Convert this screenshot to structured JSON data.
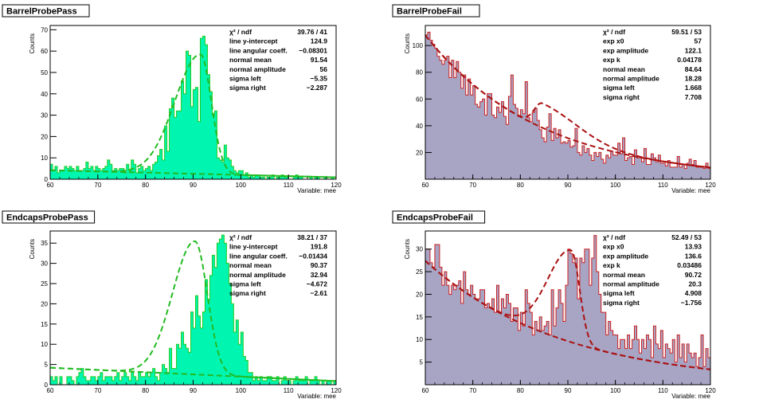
{
  "chart_data": [
    {
      "type": "bar",
      "title": "BarrelProbePass",
      "ylabel": "Counts",
      "xlabel": "Variable: mee",
      "xlim": [
        60,
        120
      ],
      "ylim": [
        0,
        72
      ],
      "xticks": [
        60,
        70,
        80,
        90,
        100,
        110,
        120
      ],
      "yticks": [
        0,
        10,
        20,
        30,
        40,
        50,
        60,
        70
      ],
      "fill_color": "#00f5b0",
      "line_color": "#22cc22",
      "fit_color": "#22bb22",
      "bin_width": 1,
      "values": [
        7,
        4,
        6,
        3,
        4,
        4,
        6,
        5,
        6,
        5,
        4,
        6,
        4,
        4,
        5,
        8,
        5,
        6,
        4,
        6,
        5,
        4,
        5,
        6,
        9,
        7,
        4,
        5,
        4,
        5,
        5,
        3,
        7,
        4,
        9,
        7,
        3,
        5,
        6,
        4,
        5,
        6,
        4,
        7,
        8,
        11,
        14,
        9,
        25,
        13,
        33,
        38,
        29,
        32,
        32,
        46,
        40,
        60,
        58,
        34,
        42,
        43,
        27,
        66,
        67,
        63,
        49,
        41,
        30,
        32,
        10,
        9,
        8,
        16,
        10,
        9,
        6,
        4,
        3,
        4,
        4,
        2,
        3,
        1,
        2,
        1,
        2,
        2,
        1,
        1,
        0,
        1,
        1,
        2,
        0,
        1,
        1,
        2,
        1,
        1,
        0,
        0,
        1,
        2,
        1,
        1,
        0,
        0,
        0,
        1,
        0,
        1,
        1,
        0,
        0,
        1,
        0,
        0,
        1,
        0
      ],
      "stats": [
        {
          "label": "χ² / ndf",
          "value": "39.76 / 41"
        },
        {
          "label": "line y-intercept",
          "value": "124.9"
        },
        {
          "label": "line angular coeff.",
          "value": "−0.08301"
        },
        {
          "label": "normal mean",
          "value": "91.54"
        },
        {
          "label": "normal amplitude",
          "value": "56"
        },
        {
          "label": "sigma left",
          "value": "−5.35"
        },
        {
          "label": "sigma right",
          "value": "−2.287"
        }
      ],
      "fit": {
        "model": "line+asymgauss",
        "intercept": 124.9,
        "slope": -0.08301,
        "mean": 91.54,
        "amplitude": 56,
        "sigma_left": 5.35,
        "sigma_right": 2.287
      }
    },
    {
      "type": "bar",
      "title": "BarrelProbeFail",
      "ylabel": "Counts",
      "xlabel": "Variable: mee",
      "xlim": [
        60,
        120
      ],
      "ylim": [
        0,
        115
      ],
      "xticks": [
        60,
        70,
        80,
        90,
        100,
        110,
        120
      ],
      "yticks": [
        20,
        40,
        60,
        80,
        100
      ],
      "fill_color": "#a8a4c4",
      "line_color": "#cc2222",
      "fit_color": "#aa1111",
      "bin_width": 1,
      "values": [
        108,
        110,
        104,
        101,
        98,
        92,
        89,
        86,
        89,
        92,
        76,
        89,
        76,
        88,
        80,
        68,
        78,
        63,
        75,
        63,
        70,
        56,
        54,
        58,
        60,
        48,
        64,
        64,
        48,
        46,
        54,
        50,
        58,
        47,
        41,
        62,
        78,
        56,
        53,
        47,
        52,
        49,
        73,
        46,
        43,
        50,
        53,
        44,
        37,
        31,
        28,
        39,
        49,
        29,
        38,
        31,
        37,
        27,
        28,
        27,
        29,
        24,
        25,
        38,
        20,
        18,
        25,
        20,
        23,
        18,
        14,
        20,
        17,
        20,
        15,
        12,
        18,
        16,
        21,
        18,
        18,
        27,
        19,
        31,
        14,
        16,
        17,
        11,
        22,
        16,
        16,
        13,
        23,
        11,
        11,
        19,
        16,
        13,
        18,
        12,
        12,
        10,
        14,
        9,
        9,
        9,
        17,
        9,
        11,
        8,
        12,
        15,
        11,
        14,
        9,
        9,
        9,
        8,
        12,
        8
      ],
      "stats": [
        {
          "label": "χ² / ndf",
          "value": "59.51 / 53"
        },
        {
          "label": "exp x0",
          "value": "57"
        },
        {
          "label": "exp amplitude",
          "value": "122.1"
        },
        {
          "label": "exp k",
          "value": "0.04178"
        },
        {
          "label": "normal mean",
          "value": "84.64"
        },
        {
          "label": "normal amplitude",
          "value": "18.28"
        },
        {
          "label": "sigma left",
          "value": "1.668"
        },
        {
          "label": "sigma right",
          "value": "7.708"
        }
      ],
      "fit": {
        "model": "exp+asymgauss",
        "x0": 57,
        "exp_amplitude": 122.1,
        "k": 0.04178,
        "mean": 84.64,
        "amplitude": 18.28,
        "sigma_left": 1.668,
        "sigma_right": 7.708
      }
    },
    {
      "type": "bar",
      "title": "EndcapsProbePass",
      "ylabel": "Counts",
      "xlabel": "Variable: mee",
      "xlim": [
        60,
        120
      ],
      "ylim": [
        0,
        38
      ],
      "xticks": [
        60,
        70,
        80,
        90,
        100,
        110,
        120
      ],
      "yticks": [
        0,
        5,
        10,
        15,
        20,
        25,
        30,
        35
      ],
      "fill_color": "#00f5b0",
      "line_color": "#22cc22",
      "fit_color": "#22bb22",
      "bin_width": 1,
      "values": [
        2,
        1,
        2,
        0,
        2,
        0,
        0,
        2,
        2,
        1,
        0,
        2,
        3,
        4,
        2,
        1,
        1,
        2,
        2,
        1,
        2,
        3,
        1,
        2,
        2,
        2,
        1,
        2,
        3,
        1,
        2,
        3,
        2,
        1,
        3,
        2,
        1,
        3,
        2,
        2,
        3,
        2,
        3,
        4,
        2,
        1,
        3,
        5,
        4,
        3,
        9,
        4,
        4,
        10,
        9,
        13,
        10,
        9,
        8,
        18,
        14,
        22,
        17,
        14,
        18,
        26,
        21,
        27,
        32,
        29,
        35,
        36,
        37,
        35,
        30,
        25,
        20,
        13,
        16,
        10,
        13,
        7,
        6,
        3,
        3,
        1,
        2,
        1,
        2,
        1,
        1,
        2,
        2,
        1,
        1,
        2,
        0,
        1,
        2,
        1,
        1,
        0,
        1,
        2,
        1,
        1,
        1,
        2,
        0,
        1,
        1,
        2,
        1,
        0,
        1,
        0,
        1,
        1,
        0,
        1
      ],
      "stats": [
        {
          "label": "χ² / ndf",
          "value": "38.21 / 37"
        },
        {
          "label": "line y-intercept",
          "value": "191.8"
        },
        {
          "label": "line angular coeff.",
          "value": "−0.01434"
        },
        {
          "label": "normal mean",
          "value": "90.37"
        },
        {
          "label": "normal amplitude",
          "value": "32.94"
        },
        {
          "label": "sigma left",
          "value": "−4.672"
        },
        {
          "label": "sigma right",
          "value": "−2.61"
        }
      ],
      "fit": {
        "model": "line+asymgauss",
        "intercept": 191.8,
        "slope": -0.01434,
        "mean": 90.37,
        "amplitude": 32.94,
        "sigma_left": 4.672,
        "sigma_right": 2.61
      }
    },
    {
      "type": "bar",
      "title": "EndcapsProbeFail",
      "ylabel": "Counts",
      "xlabel": "Variable: mee",
      "xlim": [
        60,
        120
      ],
      "ylim": [
        0,
        34
      ],
      "xticks": [
        60,
        70,
        80,
        90,
        100,
        110,
        120
      ],
      "yticks": [
        5,
        10,
        15,
        20,
        25,
        30
      ],
      "fill_color": "#a8a4c4",
      "line_color": "#cc2222",
      "fit_color": "#aa1111",
      "bin_width": 1,
      "values": [
        30,
        30,
        27,
        26,
        31,
        31,
        26,
        22,
        25,
        22,
        20,
        22,
        21,
        22,
        23,
        18,
        25,
        21,
        20,
        22,
        20,
        19,
        19,
        21,
        21,
        17,
        18,
        17,
        19,
        16,
        22,
        16,
        19,
        17,
        20,
        18,
        14,
        17,
        17,
        12,
        16,
        13,
        21,
        18,
        16,
        11,
        14,
        12,
        15,
        12,
        13,
        14,
        11,
        21,
        13,
        17,
        21,
        18,
        14,
        22,
        30,
        29,
        27,
        28,
        19,
        28,
        27,
        30,
        30,
        22,
        28,
        33,
        25,
        20,
        16,
        16,
        11,
        14,
        12,
        11,
        11,
        8,
        10,
        10,
        8,
        11,
        8,
        10,
        13,
        10,
        7,
        10,
        8,
        11,
        10,
        6,
        13,
        9,
        8,
        12,
        6,
        9,
        8,
        7,
        10,
        5,
        11,
        6,
        9,
        5,
        9,
        7,
        6,
        7,
        4,
        6,
        11,
        4,
        8,
        6
      ],
      "stats": [
        {
          "label": "χ² / ndf",
          "value": "52.49 / 53"
        },
        {
          "label": "exp x0",
          "value": "13.93"
        },
        {
          "label": "exp amplitude",
          "value": "136.6"
        },
        {
          "label": "exp k",
          "value": "0.03486"
        },
        {
          "label": "normal mean",
          "value": "90.72"
        },
        {
          "label": "normal amplitude",
          "value": "20.3"
        },
        {
          "label": "sigma left",
          "value": "4.908"
        },
        {
          "label": "sigma right",
          "value": "−1.756"
        }
      ],
      "fit": {
        "model": "exp+asymgauss",
        "x0": 13.93,
        "exp_amplitude": 136.6,
        "k": 0.03486,
        "mean": 90.72,
        "amplitude": 20.3,
        "sigma_left": 4.908,
        "sigma_right": 1.756
      }
    }
  ]
}
